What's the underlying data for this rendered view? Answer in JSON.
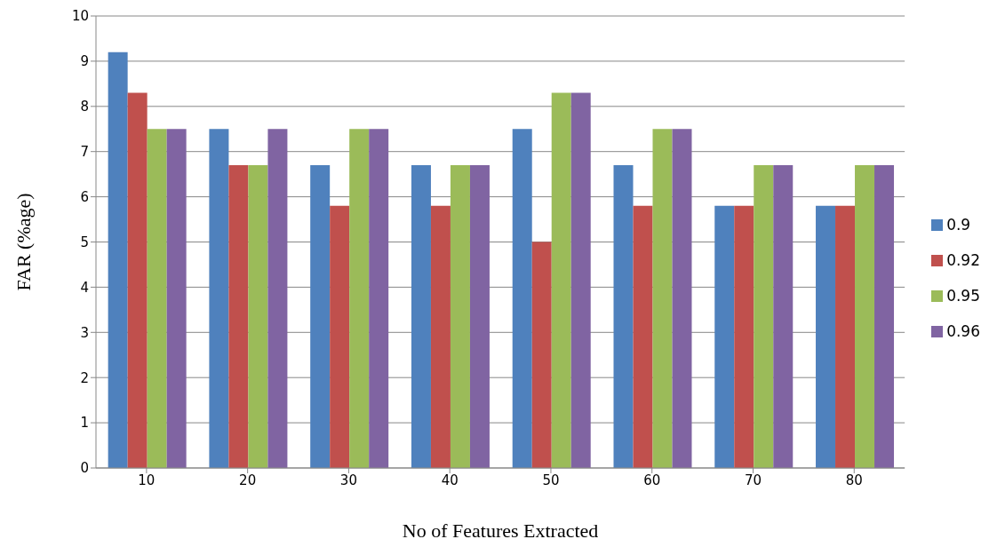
{
  "chart_data": {
    "type": "bar",
    "xlabel": "No of Features Extracted",
    "ylabel": "FAR (%age)",
    "categories": [
      "10",
      "20",
      "30",
      "40",
      "50",
      "60",
      "70",
      "80"
    ],
    "series": [
      {
        "name": "0.9",
        "color": "#4f81bd",
        "values": [
          9.2,
          7.5,
          6.7,
          6.7,
          7.5,
          6.7,
          5.8,
          5.8
        ]
      },
      {
        "name": "0.92",
        "color": "#c0504d",
        "values": [
          8.3,
          6.7,
          5.8,
          5.8,
          5.0,
          5.8,
          5.8,
          5.8
        ]
      },
      {
        "name": "0.95",
        "color": "#9bbb59",
        "values": [
          7.5,
          6.7,
          7.5,
          6.7,
          8.3,
          7.5,
          6.7,
          6.7
        ]
      },
      {
        "name": "0.96",
        "color": "#8064a2",
        "values": [
          7.5,
          7.5,
          7.5,
          6.7,
          8.3,
          7.5,
          6.7,
          6.7
        ]
      }
    ],
    "ylim": [
      0,
      10
    ],
    "yticks": [
      0,
      1,
      2,
      3,
      4,
      5,
      6,
      7,
      8,
      9,
      10
    ],
    "grid": "y",
    "legend": "right"
  }
}
